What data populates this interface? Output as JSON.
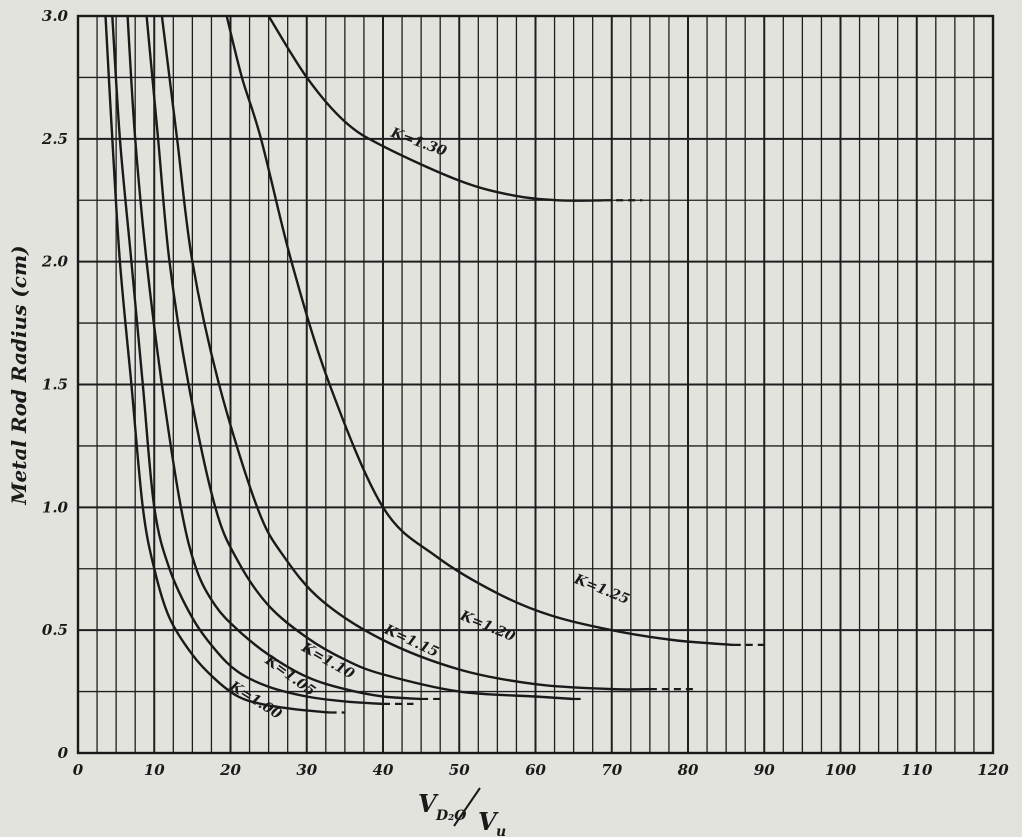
{
  "chart_data": {
    "type": "line",
    "title": "",
    "xlabel": "V",
    "xlabel_sub": "D₂O",
    "xlabel_den": "V",
    "xlabel_den_sub": "u",
    "ylabel": "Metal Rod Radius (cm)",
    "xlim": [
      0,
      120
    ],
    "ylim": [
      0,
      3.0
    ],
    "x_ticks": [
      0,
      10,
      20,
      30,
      40,
      50,
      60,
      70,
      80,
      90,
      100,
      110,
      120
    ],
    "x_tick_labels": [
      "0",
      "10",
      "20",
      "30",
      "40",
      "50",
      "60",
      "70",
      "80",
      "90",
      "100",
      "110",
      "120"
    ],
    "y_ticks": [
      0,
      0.5,
      1.0,
      1.5,
      2.0,
      2.5,
      3.0
    ],
    "y_tick_labels": [
      "0",
      "0.5",
      "1.0",
      "1.5",
      "2.0",
      "2.5",
      "3.0"
    ],
    "grid": true,
    "series": [
      {
        "name": "K=1.00",
        "points": [
          [
            3.6,
            3.0
          ],
          [
            4.5,
            2.5
          ],
          [
            5.5,
            2.0
          ],
          [
            7,
            1.5
          ],
          [
            8.5,
            1.0
          ],
          [
            10,
            0.75
          ],
          [
            12,
            0.55
          ],
          [
            15,
            0.4
          ],
          [
            18,
            0.3
          ],
          [
            21,
            0.23
          ],
          [
            24,
            0.2
          ],
          [
            28,
            0.18
          ],
          [
            31,
            0.17
          ],
          [
            33,
            0.165
          ]
        ],
        "extension": [
          [
            33,
            0.165
          ],
          [
            35,
            0.165
          ]
        ],
        "label": "K=1.00",
        "label_at": [
          23,
          0.2
        ],
        "label_angle": 32
      },
      {
        "name": "K=1.05",
        "points": [
          [
            4.5,
            3.0
          ],
          [
            5.5,
            2.5
          ],
          [
            7,
            2.0
          ],
          [
            8.5,
            1.5
          ],
          [
            10,
            1.0
          ],
          [
            12,
            0.75
          ],
          [
            15,
            0.55
          ],
          [
            18,
            0.42
          ],
          [
            21,
            0.33
          ],
          [
            25,
            0.27
          ],
          [
            30,
            0.23
          ],
          [
            35,
            0.21
          ],
          [
            40,
            0.2
          ]
        ],
        "extension": [
          [
            40,
            0.2
          ],
          [
            44,
            0.2
          ]
        ],
        "label": "K=1.05",
        "label_at": [
          27.5,
          0.3
        ],
        "label_angle": 36
      },
      {
        "name": "K=1.10",
        "points": [
          [
            6.5,
            3.0
          ],
          [
            7.5,
            2.5
          ],
          [
            9,
            2.0
          ],
          [
            11,
            1.5
          ],
          [
            13.5,
            1.0
          ],
          [
            15.5,
            0.75
          ],
          [
            18,
            0.6
          ],
          [
            21,
            0.5
          ],
          [
            25,
            0.4
          ],
          [
            30,
            0.31
          ],
          [
            35,
            0.26
          ],
          [
            40,
            0.23
          ],
          [
            45,
            0.22
          ]
        ],
        "extension": [
          [
            45,
            0.22
          ],
          [
            48,
            0.22
          ]
        ],
        "label": "K=1.10",
        "label_at": [
          32.5,
          0.36
        ],
        "label_angle": 30
      },
      {
        "name": "K=1.15",
        "points": [
          [
            9,
            3.0
          ],
          [
            10.5,
            2.5
          ],
          [
            12,
            2.0
          ],
          [
            14.5,
            1.5
          ],
          [
            18,
            1.0
          ],
          [
            21,
            0.78
          ],
          [
            25,
            0.6
          ],
          [
            30,
            0.47
          ],
          [
            35,
            0.38
          ],
          [
            40,
            0.32
          ],
          [
            50,
            0.25
          ],
          [
            60,
            0.23
          ],
          [
            65,
            0.22
          ]
        ],
        "extension": [
          [
            65,
            0.22
          ],
          [
            66,
            0.22
          ]
        ],
        "label": "K=1.15",
        "label_at": [
          43.5,
          0.44
        ],
        "label_angle": 25
      },
      {
        "name": "K=1.20",
        "points": [
          [
            11,
            3.0
          ],
          [
            13,
            2.5
          ],
          [
            15,
            2.0
          ],
          [
            18.5,
            1.5
          ],
          [
            23.5,
            1.0
          ],
          [
            27,
            0.8
          ],
          [
            32,
            0.62
          ],
          [
            40,
            0.46
          ],
          [
            50,
            0.34
          ],
          [
            60,
            0.28
          ],
          [
            70,
            0.26
          ],
          [
            75,
            0.26
          ]
        ],
        "extension": [
          [
            75,
            0.26
          ],
          [
            81,
            0.26
          ]
        ],
        "label": "K=1.20",
        "label_at": [
          53.5,
          0.5
        ],
        "label_angle": 23
      },
      {
        "name": "K=1.25",
        "points": [
          [
            19.5,
            3.0
          ],
          [
            21.5,
            2.75
          ],
          [
            24,
            2.5
          ],
          [
            28,
            2.0
          ],
          [
            33,
            1.5
          ],
          [
            40,
            1.0
          ],
          [
            47,
            0.8
          ],
          [
            55,
            0.65
          ],
          [
            62,
            0.56
          ],
          [
            70,
            0.5
          ],
          [
            78,
            0.46
          ],
          [
            86,
            0.44
          ]
        ],
        "extension": [
          [
            86,
            0.44
          ],
          [
            90,
            0.44
          ]
        ],
        "label": "K=1.25",
        "label_at": [
          68.5,
          0.65
        ],
        "label_angle": 22
      },
      {
        "name": "K=1.30",
        "points": [
          [
            25,
            3.0
          ],
          [
            30,
            2.75
          ],
          [
            35,
            2.57
          ],
          [
            40,
            2.47
          ],
          [
            50,
            2.33
          ],
          [
            57,
            2.27
          ],
          [
            63,
            2.25
          ],
          [
            69,
            2.25
          ]
        ],
        "extension": [
          [
            69,
            2.25
          ],
          [
            74,
            2.25
          ]
        ],
        "label": "K=1.30",
        "label_at": [
          44.5,
          2.47
        ],
        "label_angle": 20
      }
    ]
  }
}
